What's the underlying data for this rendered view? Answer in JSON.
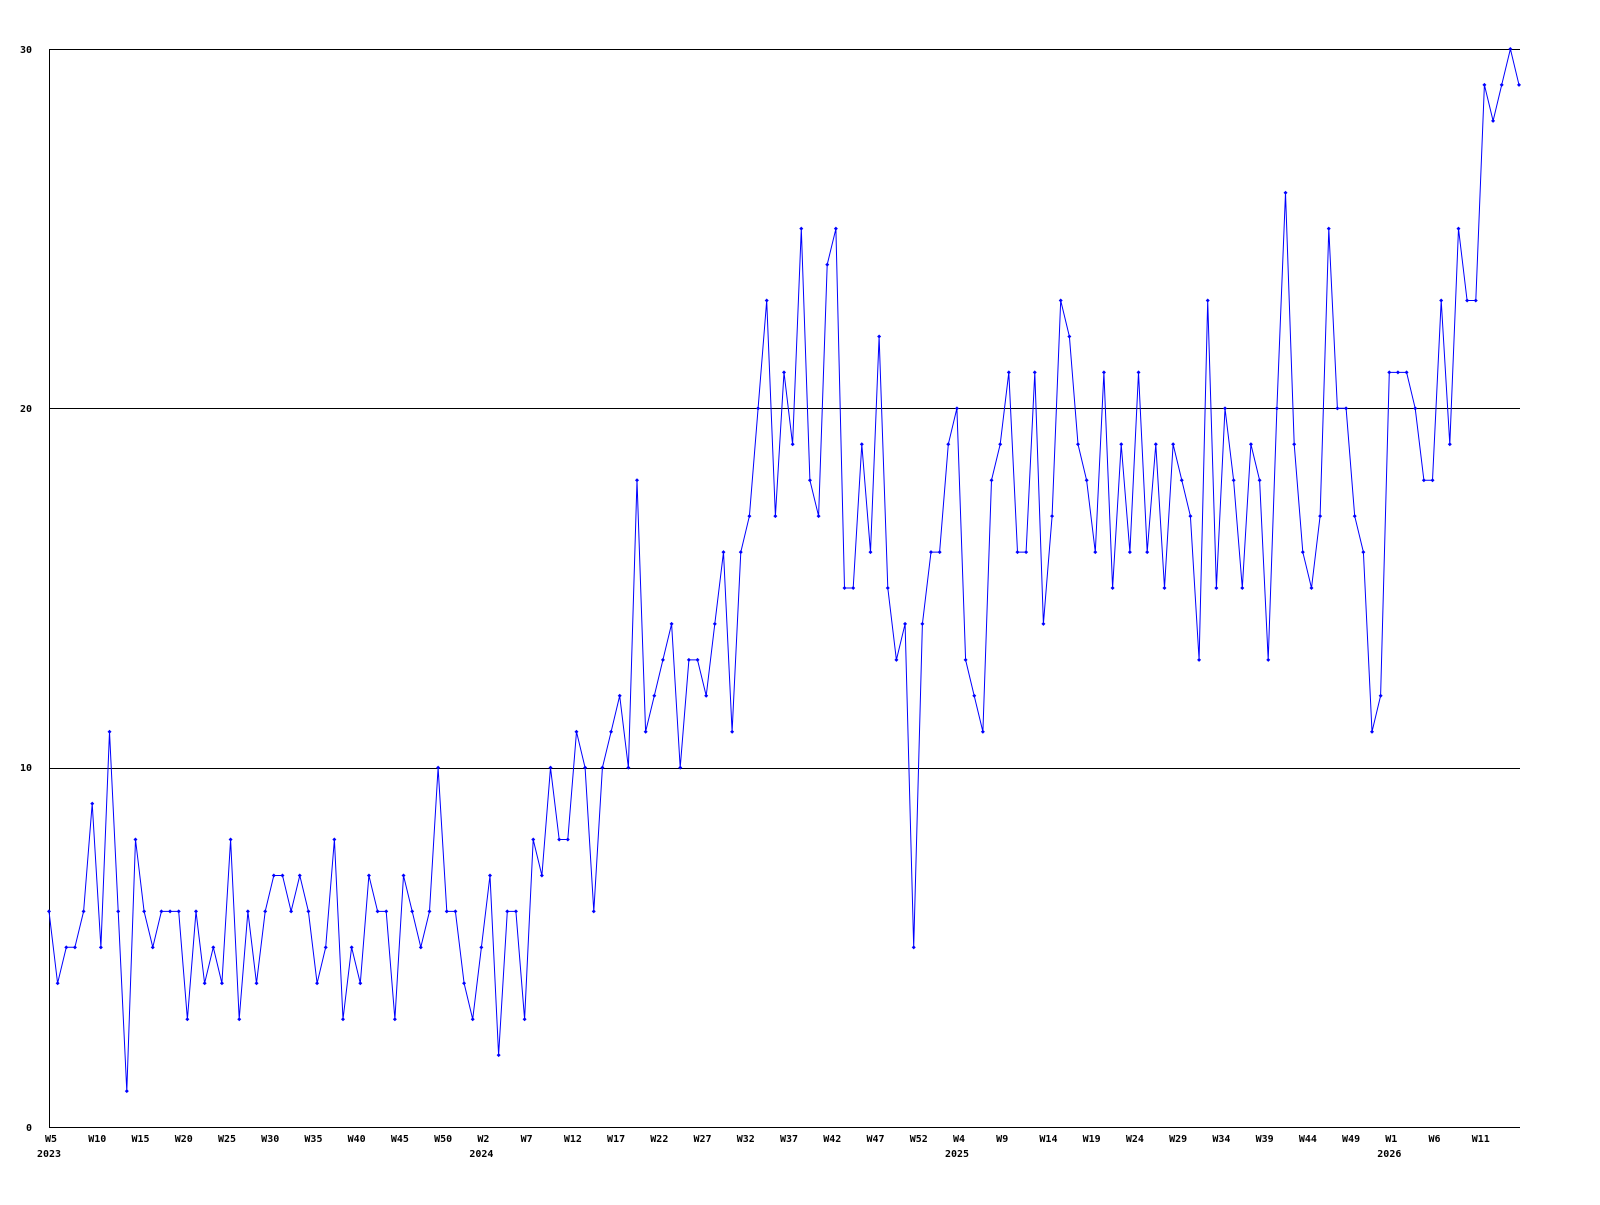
{
  "chart_data": {
    "type": "line",
    "title": "",
    "xlabel": "",
    "ylabel": "",
    "ylim": [
      0,
      30
    ],
    "y_ticks": [
      "0",
      "10",
      "20",
      "30"
    ],
    "grid": "horizontal",
    "series_color": "#0000ff",
    "x_tick_every_weeks": 5,
    "x_ticks": [
      {
        "label": "W5",
        "year": "2023"
      },
      {
        "label": "W10"
      },
      {
        "label": "W15"
      },
      {
        "label": "W20"
      },
      {
        "label": "W25"
      },
      {
        "label": "W30"
      },
      {
        "label": "W35"
      },
      {
        "label": "W40"
      },
      {
        "label": "W45"
      },
      {
        "label": "W50"
      },
      {
        "label": "W2",
        "year": "2024"
      },
      {
        "label": "W7"
      },
      {
        "label": "W12"
      },
      {
        "label": "W17"
      },
      {
        "label": "W22"
      },
      {
        "label": "W27"
      },
      {
        "label": "W32"
      },
      {
        "label": "W37"
      },
      {
        "label": "W42"
      },
      {
        "label": "W47"
      },
      {
        "label": "W52"
      },
      {
        "label": "W4",
        "year": "2025"
      },
      {
        "label": "W9"
      },
      {
        "label": "W14"
      },
      {
        "label": "W19"
      },
      {
        "label": "W24"
      },
      {
        "label": "W29"
      },
      {
        "label": "W34"
      },
      {
        "label": "W39"
      },
      {
        "label": "W44"
      },
      {
        "label": "W49"
      },
      {
        "label": "W1",
        "year": "2026"
      },
      {
        "label": "W6"
      },
      {
        "label": "W11"
      }
    ],
    "values": [
      6,
      4,
      5,
      5,
      6,
      9,
      5,
      11,
      6,
      1,
      8,
      6,
      5,
      6,
      6,
      6,
      3,
      6,
      4,
      5,
      4,
      8,
      3,
      6,
      4,
      6,
      7,
      7,
      6,
      7,
      6,
      4,
      5,
      8,
      3,
      5,
      4,
      7,
      6,
      6,
      3,
      7,
      6,
      5,
      6,
      10,
      6,
      6,
      4,
      3,
      5,
      7,
      2,
      6,
      6,
      3,
      8,
      7,
      10,
      8,
      8,
      11,
      10,
      6,
      10,
      11,
      12,
      10,
      18,
      11,
      12,
      13,
      14,
      10,
      13,
      13,
      12,
      14,
      16,
      11,
      16,
      17,
      20,
      23,
      17,
      21,
      19,
      25,
      18,
      17,
      24,
      25,
      15,
      15,
      19,
      16,
      22,
      15,
      13,
      14,
      5,
      14,
      16,
      16,
      19,
      20,
      13,
      12,
      11,
      18,
      19,
      21,
      16,
      16,
      21,
      14,
      17,
      23,
      22,
      19,
      18,
      16,
      21,
      15,
      19,
      16,
      21,
      16,
      19,
      15,
      19,
      18,
      17,
      13,
      23,
      15,
      20,
      18,
      15,
      19,
      18,
      13,
      20,
      26,
      19,
      16,
      15,
      17,
      25,
      20,
      20,
      17,
      16,
      11,
      12,
      21,
      21,
      21,
      20,
      18,
      18,
      23,
      19,
      25,
      23,
      23,
      29,
      28,
      29,
      30,
      29
    ]
  }
}
